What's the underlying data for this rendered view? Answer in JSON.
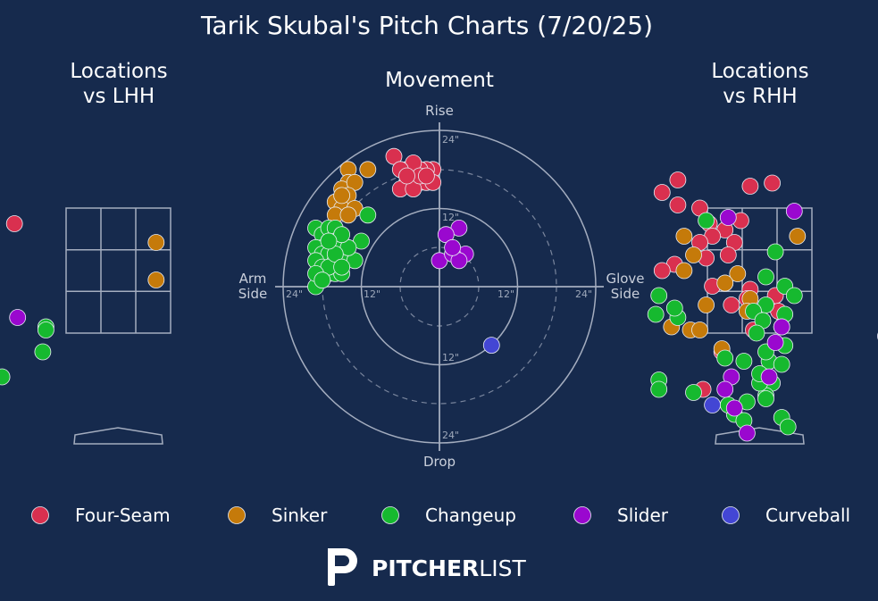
{
  "title": "Tarik Skubal's Pitch Charts (7/20/25)",
  "panels": {
    "lhh_title_line1": "Locations",
    "lhh_title_line2": "vs LHH",
    "movement_title": "Movement",
    "rhh_title_line1": "Locations",
    "rhh_title_line2": "vs RHH"
  },
  "movement_labels": {
    "top": "Rise",
    "bottom": "Drop",
    "left_line1": "Arm",
    "left_line2": "Side",
    "right_line1": "Glove",
    "right_line2": "Side",
    "ring_label": "12\"",
    "outer_label": "24\""
  },
  "colors": {
    "background": "#162a4d",
    "Four-Seam": "#d9304f",
    "Sinker": "#c57a0a",
    "Changeup": "#16b92f",
    "Slider": "#9a08cf",
    "Curveball": "#4346d4",
    "grid": "#a4adbf"
  },
  "legend": [
    "Four-Seam",
    "Sinker",
    "Changeup",
    "Slider",
    "Curveball"
  ],
  "logo": {
    "bold": "PITCHER",
    "light": "LIST"
  },
  "chart_data": [
    {
      "type": "scatter",
      "title": "Locations vs LHH",
      "series": [
        {
          "name": "Four-Seam",
          "points": [
            [
              -1.65,
              3.25
            ]
          ]
        },
        {
          "name": "Sinker",
          "points": [
            [
              0.6,
              2.95
            ],
            [
              0.6,
              2.35
            ]
          ]
        },
        {
          "name": "Changeup",
          "points": [
            [
              -1.15,
              1.6
            ],
            [
              -1.15,
              1.55
            ],
            [
              -1.2,
              1.2
            ],
            [
              -1.85,
              0.8
            ]
          ]
        },
        {
          "name": "Slider",
          "points": [
            [
              -1.6,
              1.75
            ]
          ]
        }
      ]
    },
    {
      "type": "scatter",
      "title": "Movement",
      "series": [
        {
          "name": "Four-Seam",
          "points": [
            [
              -7,
              20
            ],
            [
              -5,
              18
            ],
            [
              -4,
              17
            ],
            [
              -3,
              16
            ],
            [
              -2,
              16
            ],
            [
              -1,
              18
            ],
            [
              -2,
              18
            ],
            [
              -3,
              18
            ],
            [
              -4,
              19
            ],
            [
              -5,
              16
            ],
            [
              -6,
              15
            ],
            [
              -4,
              15
            ],
            [
              -3,
              17
            ],
            [
              -6,
              18
            ],
            [
              -1,
              16
            ],
            [
              -2,
              17
            ],
            [
              -5,
              17
            ]
          ]
        },
        {
          "name": "Sinker",
          "points": [
            [
              -14,
              18
            ],
            [
              -11,
              18
            ],
            [
              -14,
              16
            ],
            [
              -15,
              15
            ],
            [
              -16,
              13
            ],
            [
              -13,
              16
            ],
            [
              -14,
              14
            ],
            [
              -15,
              12
            ],
            [
              -13,
              12
            ],
            [
              -16,
              11
            ],
            [
              -14,
              11
            ],
            [
              -15,
              14
            ]
          ]
        },
        {
          "name": "Changeup",
          "points": [
            [
              -19,
              9
            ],
            [
              -18,
              8
            ],
            [
              -17,
              9
            ],
            [
              -16,
              9
            ],
            [
              -17,
              7
            ],
            [
              -18,
              6
            ],
            [
              -19,
              6
            ],
            [
              -18,
              5
            ],
            [
              -17,
              5
            ],
            [
              -16,
              4
            ],
            [
              -15,
              5
            ],
            [
              -19,
              4
            ],
            [
              -18,
              3
            ],
            [
              -17,
              2
            ],
            [
              -16,
              2
            ],
            [
              -15,
              2
            ],
            [
              -13,
              4
            ],
            [
              -12,
              7
            ],
            [
              -11,
              11
            ],
            [
              -19,
              0
            ],
            [
              -17,
              3
            ],
            [
              -16,
              7
            ],
            [
              -14,
              6
            ],
            [
              -15,
              8
            ],
            [
              -16,
              5
            ],
            [
              -17,
              7
            ],
            [
              -19,
              2
            ],
            [
              -18,
              1
            ],
            [
              -15,
              3
            ]
          ]
        },
        {
          "name": "Slider",
          "points": [
            [
              0,
              4
            ],
            [
              3,
              9
            ],
            [
              1,
              8
            ],
            [
              4,
              5
            ],
            [
              2,
              5
            ],
            [
              3,
              4
            ],
            [
              2,
              6
            ]
          ]
        },
        {
          "name": "Curveball",
          "points": [
            [
              8,
              -9
            ]
          ]
        }
      ]
    },
    {
      "type": "scatter",
      "title": "Locations vs RHH",
      "series": [
        {
          "name": "Four-Seam",
          "points": [
            [
              -1.3,
              3.95
            ],
            [
              -0.15,
              3.85
            ],
            [
              0.2,
              3.9
            ],
            [
              -1.3,
              3.55
            ],
            [
              -1.55,
              3.75
            ],
            [
              -0.95,
              3.5
            ],
            [
              -0.3,
              3.3
            ],
            [
              -0.8,
              3.25
            ],
            [
              -0.55,
              3.15
            ],
            [
              -0.75,
              3.05
            ],
            [
              -0.95,
              2.95
            ],
            [
              -0.4,
              2.95
            ],
            [
              -0.5,
              2.75
            ],
            [
              -0.85,
              2.7
            ],
            [
              -1.35,
              2.6
            ],
            [
              -1.55,
              2.5
            ],
            [
              2.25,
              2.45
            ],
            [
              -0.55,
              2.3
            ],
            [
              -0.75,
              2.25
            ],
            [
              -0.15,
              2.2
            ],
            [
              0.25,
              2.1
            ],
            [
              -0.2,
              2.05
            ],
            [
              -0.45,
              1.95
            ],
            [
              0.3,
              1.85
            ],
            [
              -0.6,
              1.2
            ],
            [
              -0.9,
              0.6
            ],
            [
              -0.1,
              1.55
            ]
          ]
        },
        {
          "name": "Sinker",
          "points": [
            [
              0.6,
              3.05
            ],
            [
              -1.2,
              3.05
            ],
            [
              -1.05,
              2.75
            ],
            [
              -1.2,
              2.5
            ],
            [
              -0.35,
              2.45
            ],
            [
              -0.55,
              2.3
            ],
            [
              -0.15,
              2.05
            ],
            [
              -1.1,
              1.55
            ],
            [
              -0.95,
              1.55
            ],
            [
              -0.6,
              1.25
            ],
            [
              -1.4,
              1.6
            ],
            [
              -0.85,
              1.95
            ],
            [
              -0.2,
              1.85
            ]
          ]
        },
        {
          "name": "Changeup",
          "points": [
            [
              -0.85,
              3.3
            ],
            [
              0.25,
              2.8
            ],
            [
              0.1,
              2.4
            ],
            [
              0.4,
              2.25
            ],
            [
              0.1,
              1.95
            ],
            [
              0.4,
              1.8
            ],
            [
              -0.1,
              1.85
            ],
            [
              0.05,
              1.7
            ],
            [
              0.35,
              1.6
            ],
            [
              0.55,
              2.1
            ],
            [
              -0.05,
              1.5
            ],
            [
              0.4,
              1.3
            ],
            [
              0.15,
              1.05
            ],
            [
              -0.25,
              1.05
            ],
            [
              -0.55,
              1.1
            ],
            [
              -1.3,
              1.75
            ],
            [
              0.1,
              1.2
            ],
            [
              0.35,
              1.0
            ],
            [
              0.2,
              0.7
            ],
            [
              0.1,
              0.5
            ],
            [
              0.35,
              0.15
            ],
            [
              0.45,
              0.0
            ],
            [
              0.1,
              0.45
            ],
            [
              -0.2,
              0.4
            ],
            [
              -1.6,
              0.75
            ],
            [
              -1.65,
              1.8
            ],
            [
              -1.6,
              2.1
            ],
            [
              -1.35,
              1.9
            ],
            [
              -0.4,
              0.2
            ],
            [
              0.0,
              0.7
            ],
            [
              -1.6,
              0.6
            ],
            [
              -1.05,
              0.55
            ],
            [
              0.0,
              0.85
            ],
            [
              -0.5,
              0.35
            ],
            [
              -0.25,
              0.1
            ]
          ]
        },
        {
          "name": "Slider",
          "points": [
            [
              -0.5,
              3.35
            ],
            [
              0.55,
              3.45
            ],
            [
              0.35,
              1.6
            ],
            [
              -0.45,
              0.8
            ],
            [
              0.15,
              0.8
            ],
            [
              -0.55,
              0.6
            ],
            [
              2.0,
              1.45
            ],
            [
              0.25,
              1.35
            ],
            [
              -0.4,
              0.3
            ],
            [
              -0.2,
              -0.1
            ]
          ]
        },
        {
          "name": "Curveball",
          "points": [
            [
              -0.75,
              0.35
            ]
          ]
        }
      ]
    }
  ]
}
